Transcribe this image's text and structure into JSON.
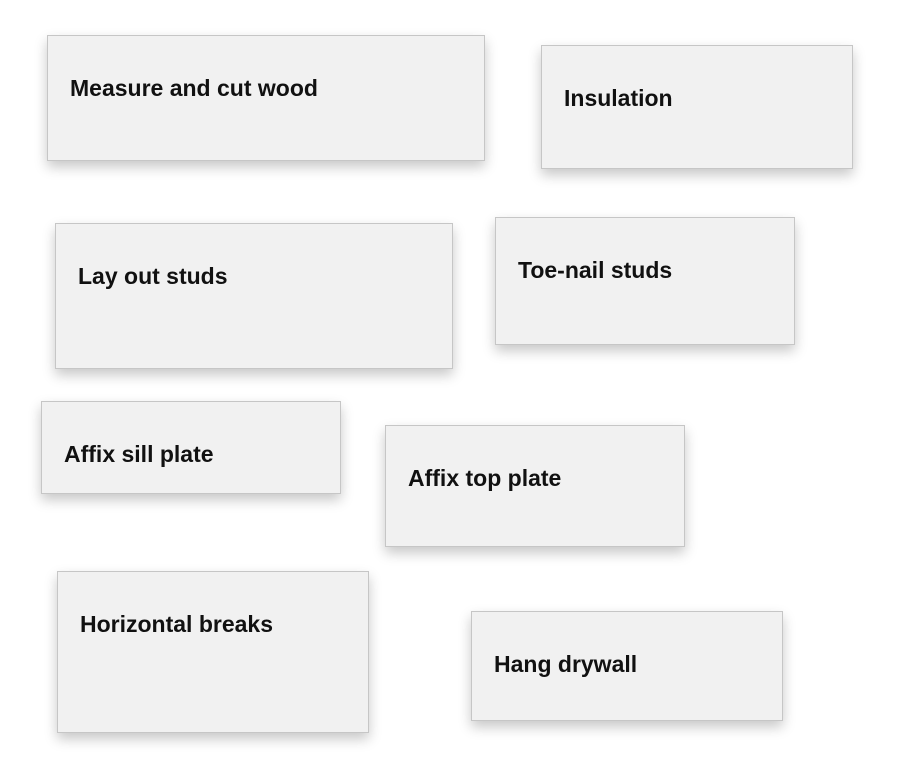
{
  "cards": [
    {
      "label": "Measure and cut wood"
    },
    {
      "label": "Insulation"
    },
    {
      "label": "Lay out studs"
    },
    {
      "label": "Toe-nail studs"
    },
    {
      "label": "Affix sill plate"
    },
    {
      "label": "Affix top plate"
    },
    {
      "label": "Horizontal breaks"
    },
    {
      "label": "Hang drywall"
    }
  ]
}
